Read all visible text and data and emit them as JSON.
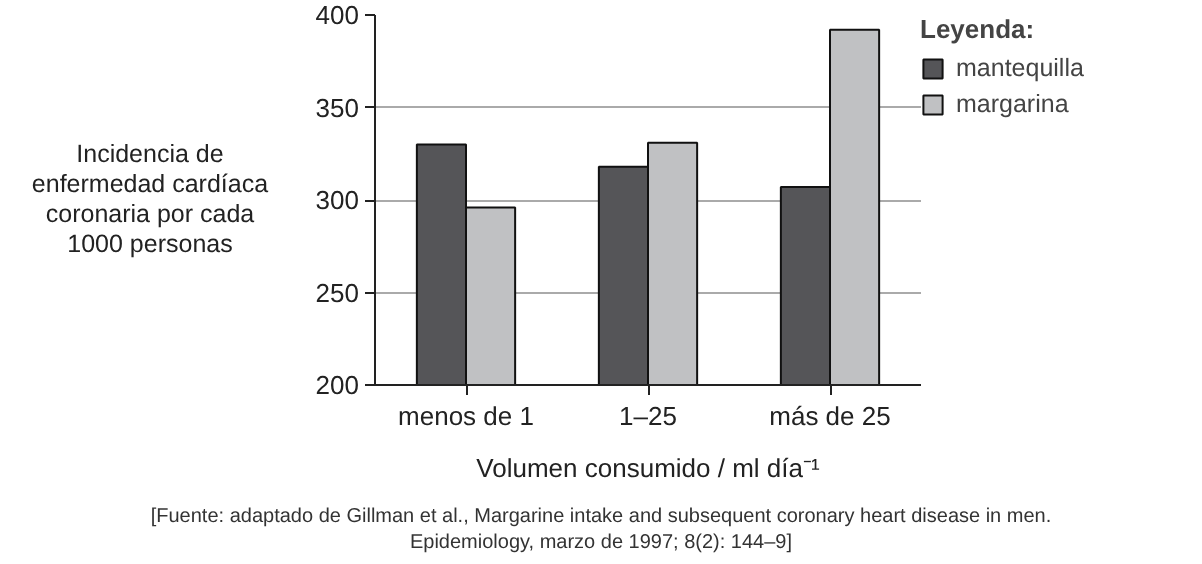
{
  "chart_data": {
    "type": "bar",
    "categories": [
      "menos de 1",
      "1–25",
      "más de 25"
    ],
    "series": [
      {
        "name": "mantequilla",
        "color": "#555558",
        "values": [
          330,
          318,
          307
        ]
      },
      {
        "name": "margarina",
        "color": "#c0c1c3",
        "values": [
          296,
          331,
          392
        ]
      }
    ],
    "xlabel": "Volumen consumido / ml día⁻¹",
    "ylabel": "Incidencia de\nenfermedad cardíaca\ncoronaria por cada\n1000 personas",
    "legend_title": "Leyenda:",
    "annotations": [
      "[Fuente: adaptado de Gillman et al., Margarine intake and subsequent coronary heart disease in men.\nEpidemiology, marzo de 1997; 8(2): 144–9]"
    ],
    "ylim": [
      200,
      400
    ],
    "yticks": [
      200,
      250,
      300,
      350,
      400
    ],
    "grid": "y",
    "legend": "top right"
  }
}
